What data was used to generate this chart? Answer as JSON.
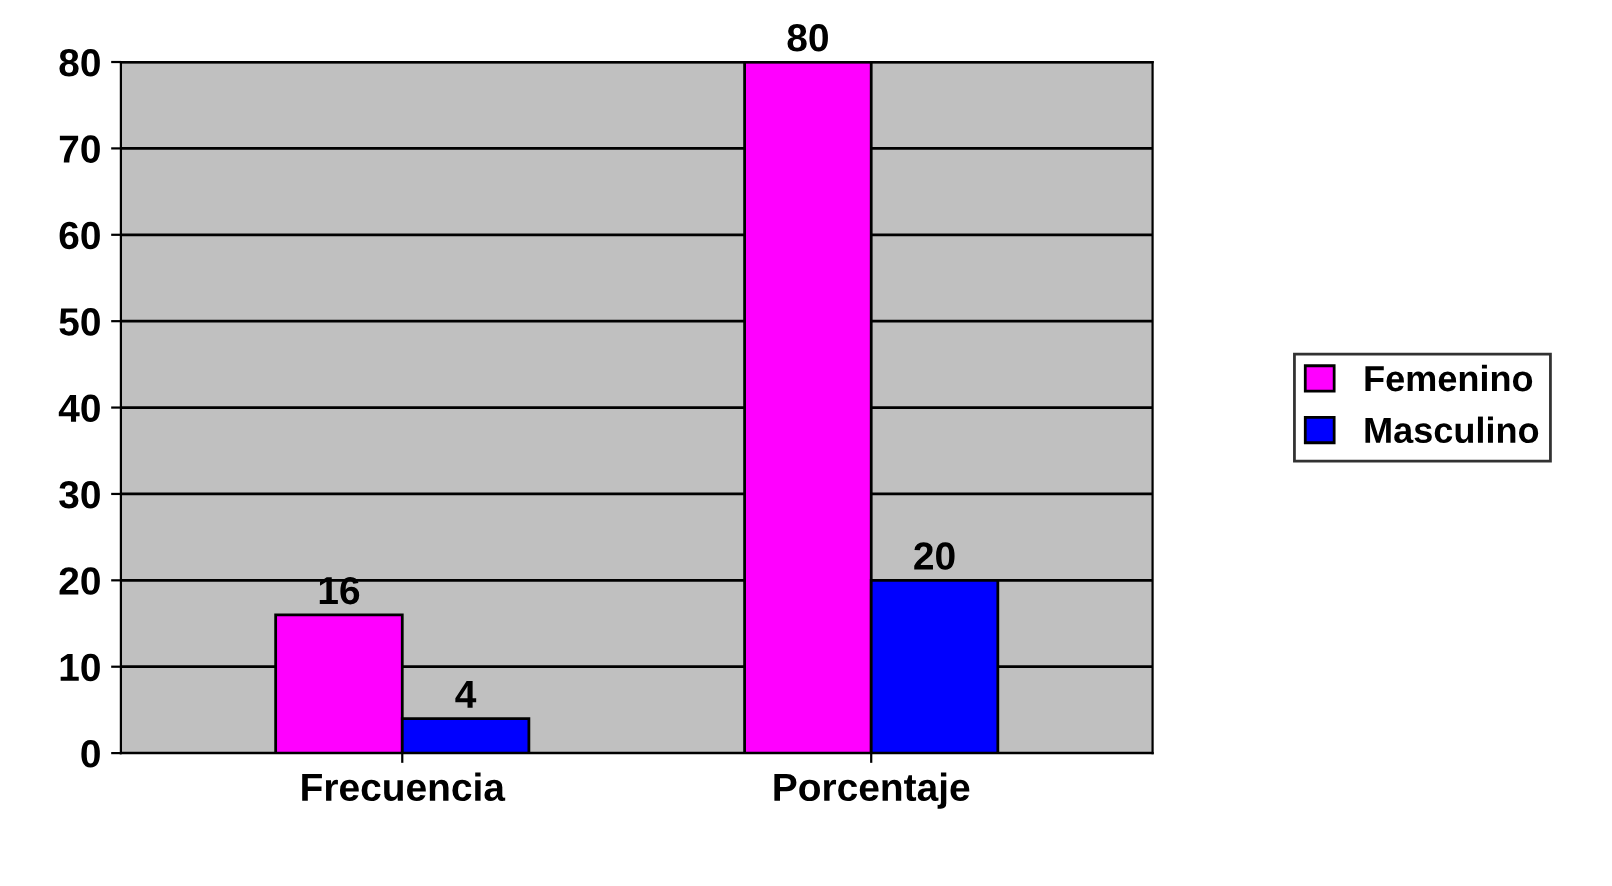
{
  "chart_data": {
    "type": "bar",
    "categories": [
      "Frecuencia",
      "Porcentaje"
    ],
    "series": [
      {
        "name": "Femenino",
        "color": "#ff00ff",
        "values": [
          16,
          80
        ]
      },
      {
        "name": "Masculino",
        "color": "#0000ff",
        "values": [
          4,
          20
        ]
      }
    ],
    "ylim": [
      0,
      80
    ],
    "yticks": [
      0,
      10,
      20,
      30,
      40,
      50,
      60,
      70,
      80
    ],
    "grid": "y",
    "legend": "right",
    "data_labels": true
  }
}
